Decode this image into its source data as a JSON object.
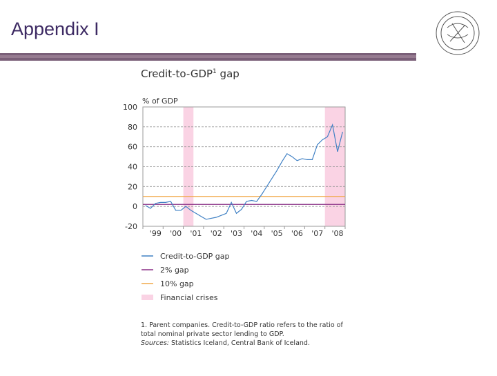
{
  "header": {
    "title": "Appendix I"
  },
  "chart_data": {
    "type": "line",
    "title_parts": [
      "Credit-to-GDP",
      "1",
      " gap"
    ],
    "y_label": "% of GDP",
    "categories": [
      null,
      null,
      "'99",
      null,
      null,
      null,
      "'00",
      null,
      null,
      null,
      "'01",
      null,
      null,
      null,
      "'02",
      null,
      null,
      null,
      "'03",
      null,
      null,
      null,
      "'04",
      null,
      null,
      null,
      "'05",
      null,
      null,
      null,
      "'06",
      null,
      null,
      null,
      "'07",
      null,
      null,
      null,
      "'08",
      null
    ],
    "series": [
      {
        "name": "Credit-to-GDP gap",
        "color": "#3f80c4",
        "values": [
          1,
          -2,
          3,
          4,
          4,
          5,
          -4,
          -4,
          0,
          -4,
          -7,
          -10,
          -13,
          -12,
          -11,
          -9,
          -7,
          4,
          -7,
          -3,
          5,
          6,
          5,
          12,
          20,
          28,
          36,
          45,
          53,
          50,
          46,
          48,
          47,
          47,
          62,
          67,
          70,
          82,
          55,
          75
        ]
      }
    ],
    "reference_lines": [
      {
        "name": "2% gap",
        "value": 2,
        "color": "#8a2f86"
      },
      {
        "name": "10% gap",
        "value": 10,
        "color": "#f0a848"
      }
    ],
    "crises": {
      "name": "Financial crises",
      "color": "#fad3e4",
      "ranges": [
        [
          8,
          9
        ],
        [
          36,
          39
        ]
      ]
    },
    "ylim": [
      -20,
      100
    ],
    "yticks": [
      -20,
      0,
      20,
      40,
      60,
      80,
      100
    ],
    "grid": true,
    "footnote": "1. Parent companies. Credit-to-GDP ratio refers to the ratio of total nominal private sector lending to GDP.",
    "sources_label": "Sources:",
    "sources": "Statistics Iceland, Central Bank of Iceland."
  }
}
